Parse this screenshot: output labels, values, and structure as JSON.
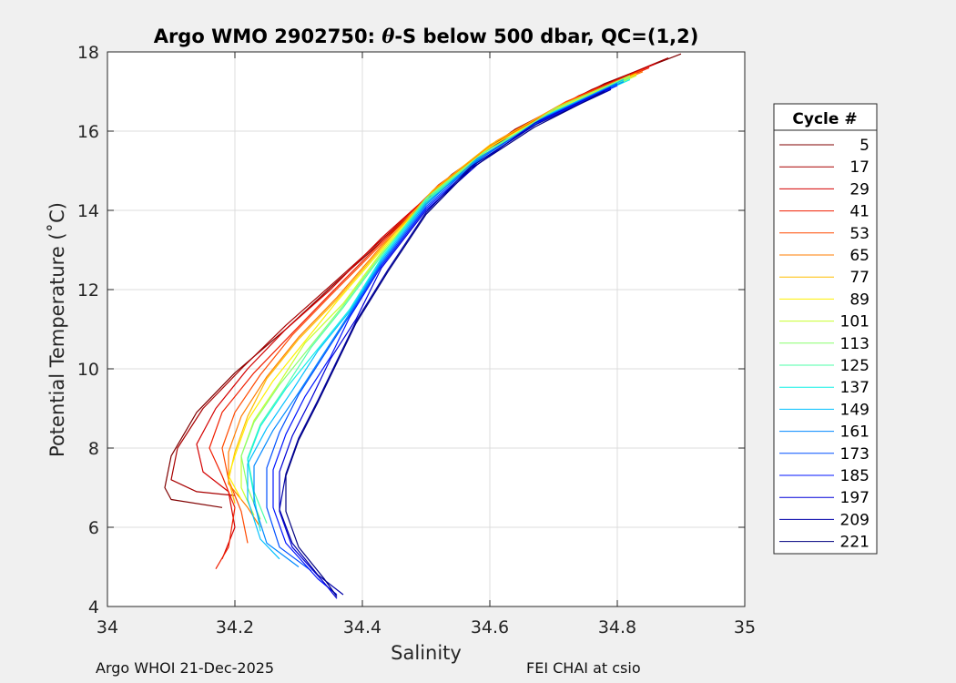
{
  "chart_data": {
    "type": "line",
    "title_parts": [
      "Argo WMO 2902750: ",
      "θ",
      "-S below 500 dbar,  QC=(1,2)"
    ],
    "xlabel": "Salinity",
    "ylabel": "Potential Temperature (˚C)",
    "xlim": [
      34,
      35
    ],
    "ylim": [
      4,
      18
    ],
    "xticks": [
      34,
      34.2,
      34.4,
      34.6,
      34.8,
      35
    ],
    "xtick_labels": [
      "34",
      "34.2",
      "34.4",
      "34.6",
      "34.8",
      "35"
    ],
    "yticks": [
      4,
      6,
      8,
      10,
      12,
      14,
      16,
      18
    ],
    "ytick_labels": [
      "4",
      "6",
      "8",
      "10",
      "12",
      "14",
      "16",
      "18"
    ],
    "grid": true,
    "legend": {
      "title": "Cycle #",
      "placement": "outside-right",
      "entries": [
        {
          "label": "5",
          "color": "#800000"
        },
        {
          "label": "17",
          "color": "#a80000"
        },
        {
          "label": "29",
          "color": "#d40000"
        },
        {
          "label": "41",
          "color": "#f01e00"
        },
        {
          "label": "53",
          "color": "#ff4a00"
        },
        {
          "label": "65",
          "color": "#ff7d00"
        },
        {
          "label": "77",
          "color": "#ffbd00"
        },
        {
          "label": "89",
          "color": "#fff000"
        },
        {
          "label": "101",
          "color": "#c8ff2e"
        },
        {
          "label": "113",
          "color": "#88ff6e"
        },
        {
          "label": "125",
          "color": "#4cffaa"
        },
        {
          "label": "137",
          "color": "#10f0e6"
        },
        {
          "label": "149",
          "color": "#00c0ff"
        },
        {
          "label": "161",
          "color": "#0088ff"
        },
        {
          "label": "173",
          "color": "#0050ff"
        },
        {
          "label": "185",
          "color": "#0014ff"
        },
        {
          "label": "197",
          "color": "#0000d8"
        },
        {
          "label": "209",
          "color": "#0000a8"
        },
        {
          "label": "221",
          "color": "#000080"
        }
      ]
    },
    "series": [
      {
        "cycle": 5,
        "color": "#800000",
        "points": [
          [
            34.9,
            17.95
          ],
          [
            34.78,
            17.2
          ],
          [
            34.66,
            16.2
          ],
          [
            34.55,
            15.0
          ],
          [
            34.45,
            13.5
          ],
          [
            34.36,
            12.2
          ],
          [
            34.28,
            11.0
          ],
          [
            34.2,
            9.9
          ],
          [
            34.14,
            8.9
          ],
          [
            34.1,
            7.8
          ],
          [
            34.09,
            7.0
          ],
          [
            34.1,
            6.7
          ],
          [
            34.18,
            6.5
          ]
        ]
      },
      {
        "cycle": 17,
        "color": "#a80000",
        "points": [
          [
            34.88,
            17.85
          ],
          [
            34.76,
            17.05
          ],
          [
            34.64,
            16.05
          ],
          [
            34.54,
            14.9
          ],
          [
            34.44,
            13.4
          ],
          [
            34.35,
            12.1
          ],
          [
            34.28,
            11.1
          ],
          [
            34.21,
            10.0
          ],
          [
            34.15,
            9.0
          ],
          [
            34.11,
            8.0
          ],
          [
            34.1,
            7.2
          ],
          [
            34.14,
            6.9
          ],
          [
            34.2,
            6.8
          ]
        ]
      },
      {
        "cycle": 29,
        "color": "#d40000",
        "points": [
          [
            34.86,
            17.7
          ],
          [
            34.74,
            16.9
          ],
          [
            34.63,
            15.9
          ],
          [
            34.53,
            14.75
          ],
          [
            34.43,
            13.3
          ],
          [
            34.35,
            12.0
          ],
          [
            34.28,
            11.0
          ],
          [
            34.22,
            10.0
          ],
          [
            34.17,
            9.0
          ],
          [
            34.14,
            8.1
          ],
          [
            34.15,
            7.4
          ],
          [
            34.19,
            6.9
          ],
          [
            34.2,
            6.0
          ],
          [
            34.18,
            5.2
          ]
        ]
      },
      {
        "cycle": 41,
        "color": "#f01e00",
        "points": [
          [
            34.85,
            17.6
          ],
          [
            34.73,
            16.8
          ],
          [
            34.62,
            15.8
          ],
          [
            34.52,
            14.65
          ],
          [
            34.43,
            13.2
          ],
          [
            34.35,
            11.9
          ],
          [
            34.29,
            10.9
          ],
          [
            34.23,
            9.9
          ],
          [
            34.18,
            8.9
          ],
          [
            34.16,
            8.0
          ],
          [
            34.18,
            7.3
          ],
          [
            34.2,
            6.5
          ],
          [
            34.19,
            5.5
          ],
          [
            34.17,
            4.95
          ]
        ]
      },
      {
        "cycle": 53,
        "color": "#ff4a00",
        "points": [
          [
            34.84,
            17.55
          ],
          [
            34.72,
            16.75
          ],
          [
            34.61,
            15.75
          ],
          [
            34.52,
            14.6
          ],
          [
            34.43,
            13.15
          ],
          [
            34.35,
            11.85
          ],
          [
            34.29,
            10.85
          ],
          [
            34.24,
            9.85
          ],
          [
            34.2,
            8.9
          ],
          [
            34.18,
            8.0
          ],
          [
            34.19,
            7.2
          ],
          [
            34.21,
            6.4
          ],
          [
            34.22,
            5.6
          ]
        ]
      },
      {
        "cycle": 65,
        "color": "#ff7d00",
        "points": [
          [
            34.84,
            17.5
          ],
          [
            34.72,
            16.7
          ],
          [
            34.61,
            15.7
          ],
          [
            34.52,
            14.55
          ],
          [
            34.43,
            13.1
          ],
          [
            34.36,
            11.8
          ],
          [
            34.3,
            10.8
          ],
          [
            34.25,
            9.8
          ],
          [
            34.21,
            8.8
          ],
          [
            34.19,
            7.9
          ],
          [
            34.19,
            7.1
          ],
          [
            34.22,
            6.5
          ],
          [
            34.24,
            6.0
          ]
        ]
      },
      {
        "cycle": 77,
        "color": "#ffbd00",
        "points": [
          [
            34.83,
            17.45
          ],
          [
            34.71,
            16.65
          ],
          [
            34.6,
            15.65
          ],
          [
            34.51,
            14.5
          ],
          [
            34.43,
            13.05
          ],
          [
            34.36,
            11.75
          ],
          [
            34.3,
            10.75
          ],
          [
            34.25,
            9.75
          ],
          [
            34.22,
            8.8
          ],
          [
            34.2,
            7.9
          ],
          [
            34.19,
            7.2
          ],
          [
            34.2,
            6.6
          ]
        ]
      },
      {
        "cycle": 89,
        "color": "#fff000",
        "points": [
          [
            34.83,
            17.45
          ],
          [
            34.71,
            16.6
          ],
          [
            34.6,
            15.6
          ],
          [
            34.51,
            14.45
          ],
          [
            34.43,
            13.0
          ],
          [
            34.36,
            11.7
          ],
          [
            34.31,
            10.7
          ],
          [
            34.26,
            9.7
          ],
          [
            34.22,
            8.7
          ],
          [
            34.2,
            7.8
          ],
          [
            34.19,
            7.3
          ],
          [
            34.21,
            6.7
          ]
        ]
      },
      {
        "cycle": 101,
        "color": "#c8ff2e",
        "points": [
          [
            34.83,
            17.4
          ],
          [
            34.71,
            16.55
          ],
          [
            34.6,
            15.55
          ],
          [
            34.51,
            14.4
          ],
          [
            34.43,
            12.95
          ],
          [
            34.37,
            11.65
          ],
          [
            34.31,
            10.65
          ],
          [
            34.27,
            9.65
          ],
          [
            34.23,
            8.7
          ],
          [
            34.21,
            7.8
          ],
          [
            34.21,
            7.0
          ],
          [
            34.23,
            6.3
          ]
        ]
      },
      {
        "cycle": 113,
        "color": "#88ff6e",
        "points": [
          [
            34.82,
            17.4
          ],
          [
            34.7,
            16.55
          ],
          [
            34.6,
            15.5
          ],
          [
            34.51,
            14.35
          ],
          [
            34.43,
            12.9
          ],
          [
            34.37,
            11.6
          ],
          [
            34.32,
            10.6
          ],
          [
            34.27,
            9.6
          ],
          [
            34.23,
            8.65
          ],
          [
            34.21,
            7.8
          ],
          [
            34.22,
            7.0
          ],
          [
            34.24,
            6.2
          ]
        ]
      },
      {
        "cycle": 125,
        "color": "#4cffaa",
        "points": [
          [
            34.82,
            17.35
          ],
          [
            34.7,
            16.5
          ],
          [
            34.59,
            15.45
          ],
          [
            34.5,
            14.3
          ],
          [
            34.43,
            12.85
          ],
          [
            34.37,
            11.55
          ],
          [
            34.32,
            10.55
          ],
          [
            34.28,
            9.55
          ],
          [
            34.24,
            8.6
          ],
          [
            34.22,
            7.75
          ],
          [
            34.23,
            6.9
          ],
          [
            34.25,
            6.1
          ]
        ]
      },
      {
        "cycle": 137,
        "color": "#10f0e6",
        "points": [
          [
            34.82,
            17.3
          ],
          [
            34.7,
            16.45
          ],
          [
            34.59,
            15.4
          ],
          [
            34.5,
            14.25
          ],
          [
            34.43,
            12.8
          ],
          [
            34.38,
            11.5
          ],
          [
            34.33,
            10.5
          ],
          [
            34.28,
            9.5
          ],
          [
            34.24,
            8.55
          ],
          [
            34.22,
            7.7
          ],
          [
            34.23,
            6.8
          ],
          [
            34.24,
            5.9
          ]
        ]
      },
      {
        "cycle": 149,
        "color": "#00c0ff",
        "points": [
          [
            34.81,
            17.3
          ],
          [
            34.69,
            16.4
          ],
          [
            34.59,
            15.35
          ],
          [
            34.5,
            14.2
          ],
          [
            34.43,
            12.75
          ],
          [
            34.38,
            11.45
          ],
          [
            34.33,
            10.45
          ],
          [
            34.29,
            9.45
          ],
          [
            34.25,
            8.5
          ],
          [
            34.22,
            7.6
          ],
          [
            34.22,
            6.7
          ],
          [
            34.24,
            5.7
          ],
          [
            34.27,
            5.2
          ]
        ]
      },
      {
        "cycle": 161,
        "color": "#0088ff",
        "points": [
          [
            34.81,
            17.25
          ],
          [
            34.69,
            16.35
          ],
          [
            34.58,
            15.3
          ],
          [
            34.5,
            14.15
          ],
          [
            34.43,
            12.7
          ],
          [
            34.38,
            11.4
          ],
          [
            34.34,
            10.4
          ],
          [
            34.3,
            9.4
          ],
          [
            34.26,
            8.45
          ],
          [
            34.23,
            7.55
          ],
          [
            34.23,
            6.6
          ],
          [
            34.25,
            5.6
          ],
          [
            34.3,
            5.0
          ]
        ]
      },
      {
        "cycle": 173,
        "color": "#0050ff",
        "points": [
          [
            34.8,
            17.2
          ],
          [
            34.68,
            16.3
          ],
          [
            34.58,
            15.25
          ],
          [
            34.5,
            14.1
          ],
          [
            34.43,
            12.65
          ],
          [
            34.38,
            11.35
          ],
          [
            34.34,
            10.35
          ],
          [
            34.3,
            9.35
          ],
          [
            34.27,
            8.4
          ],
          [
            34.25,
            7.5
          ],
          [
            34.25,
            6.5
          ],
          [
            34.27,
            5.5
          ],
          [
            34.32,
            4.9
          ]
        ]
      },
      {
        "cycle": 185,
        "color": "#0014ff",
        "points": [
          [
            34.8,
            17.15
          ],
          [
            34.68,
            16.25
          ],
          [
            34.58,
            15.2
          ],
          [
            34.5,
            14.05
          ],
          [
            34.43,
            12.6
          ],
          [
            34.38,
            11.3
          ],
          [
            34.35,
            10.3
          ],
          [
            34.31,
            9.3
          ],
          [
            34.28,
            8.35
          ],
          [
            34.26,
            7.45
          ],
          [
            34.26,
            6.5
          ],
          [
            34.28,
            5.6
          ],
          [
            34.33,
            4.7
          ],
          [
            34.36,
            4.3
          ]
        ]
      },
      {
        "cycle": 197,
        "color": "#0000d8",
        "points": [
          [
            34.79,
            17.1
          ],
          [
            34.67,
            16.2
          ],
          [
            34.58,
            15.15
          ],
          [
            34.5,
            14.0
          ],
          [
            34.43,
            12.55
          ],
          [
            34.39,
            11.25
          ],
          [
            34.35,
            10.25
          ],
          [
            34.32,
            9.25
          ],
          [
            34.29,
            8.3
          ],
          [
            34.27,
            7.4
          ],
          [
            34.27,
            6.4
          ],
          [
            34.29,
            5.5
          ],
          [
            34.34,
            4.6
          ],
          [
            34.36,
            4.2
          ]
        ]
      },
      {
        "cycle": 209,
        "color": "#0000a8",
        "points": [
          [
            34.79,
            17.05
          ],
          [
            34.67,
            16.15
          ],
          [
            34.57,
            15.1
          ],
          [
            34.5,
            13.95
          ],
          [
            34.44,
            12.5
          ],
          [
            34.39,
            11.2
          ],
          [
            34.36,
            10.2
          ],
          [
            34.33,
            9.2
          ],
          [
            34.3,
            8.25
          ],
          [
            34.28,
            7.35
          ],
          [
            34.27,
            6.45
          ],
          [
            34.29,
            5.6
          ],
          [
            34.33,
            4.8
          ],
          [
            34.37,
            4.3
          ]
        ]
      },
      {
        "cycle": 221,
        "color": "#000080",
        "points": [
          [
            34.78,
            17.0
          ],
          [
            34.67,
            16.1
          ],
          [
            34.57,
            15.05
          ],
          [
            34.5,
            13.9
          ],
          [
            34.44,
            12.45
          ],
          [
            34.39,
            11.15
          ],
          [
            34.36,
            10.15
          ],
          [
            34.33,
            9.15
          ],
          [
            34.3,
            8.2
          ],
          [
            34.28,
            7.3
          ],
          [
            34.28,
            6.4
          ],
          [
            34.3,
            5.5
          ],
          [
            34.34,
            4.7
          ],
          [
            34.36,
            4.25
          ]
        ]
      }
    ]
  },
  "footer": {
    "left": "Argo WHOI 21-Dec-2025",
    "right": "FEI CHAI at csio"
  }
}
